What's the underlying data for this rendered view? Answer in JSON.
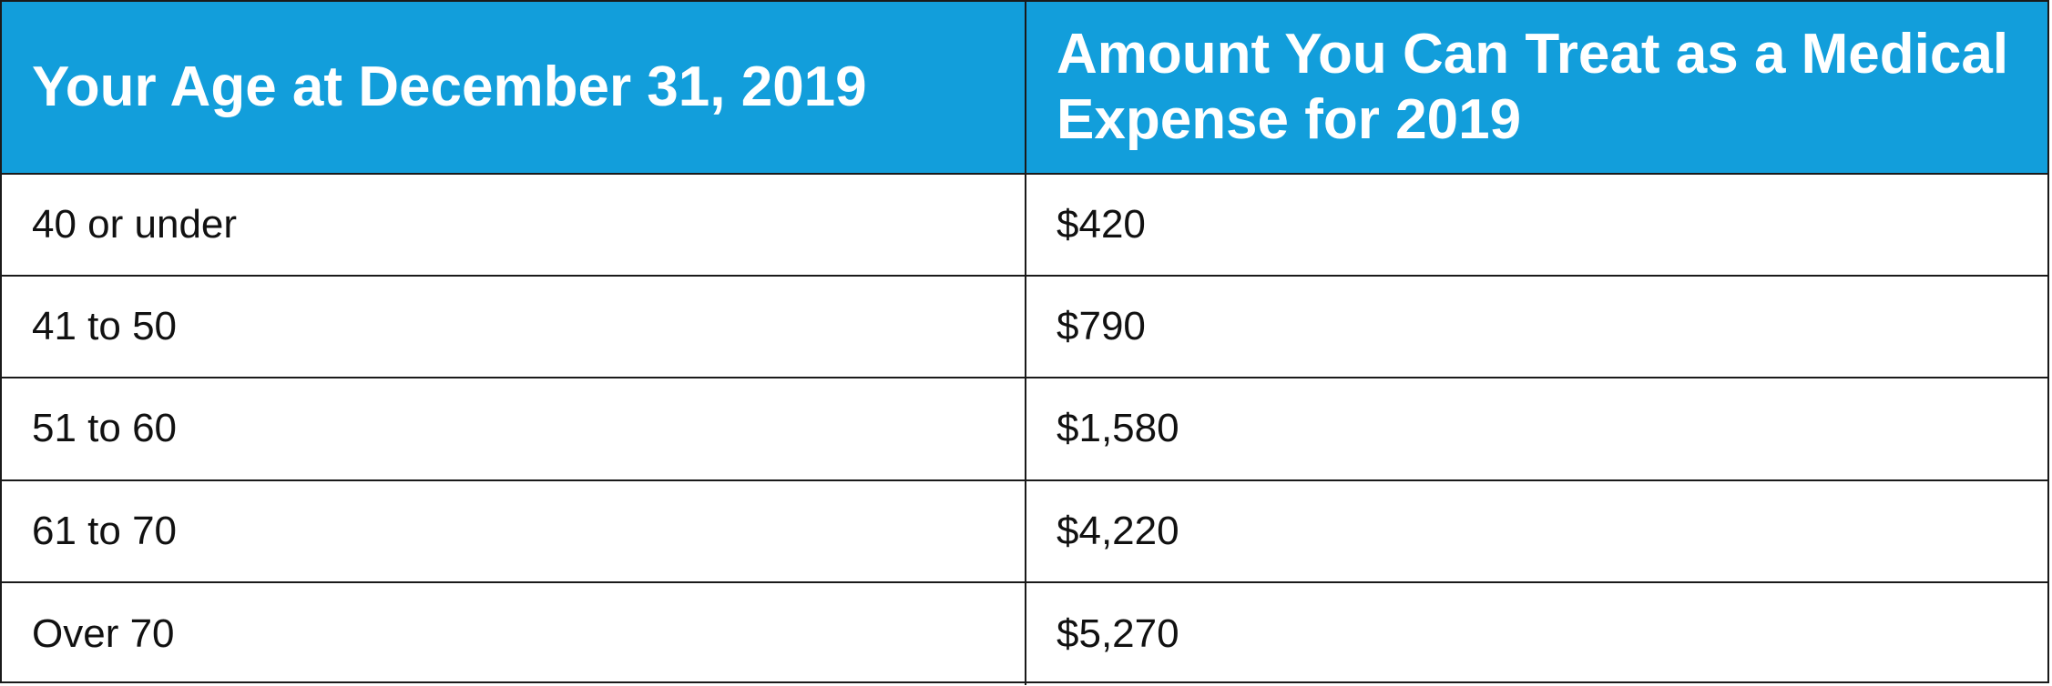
{
  "table": {
    "headers": [
      "Your Age at December 31, 2019",
      "Amount You Can Treat as a Medical Expense for 2019"
    ],
    "rows": [
      [
        "40 or under",
        "$420"
      ],
      [
        "41 to 50",
        "$790"
      ],
      [
        "51 to 60",
        "$1,580"
      ],
      [
        "61 to 70",
        "$4,220"
      ],
      [
        "Over 70",
        "$5,270"
      ]
    ]
  },
  "colors": {
    "header_background": "#129edb",
    "header_text": "#ffffff",
    "border": "#1a1a1a"
  }
}
